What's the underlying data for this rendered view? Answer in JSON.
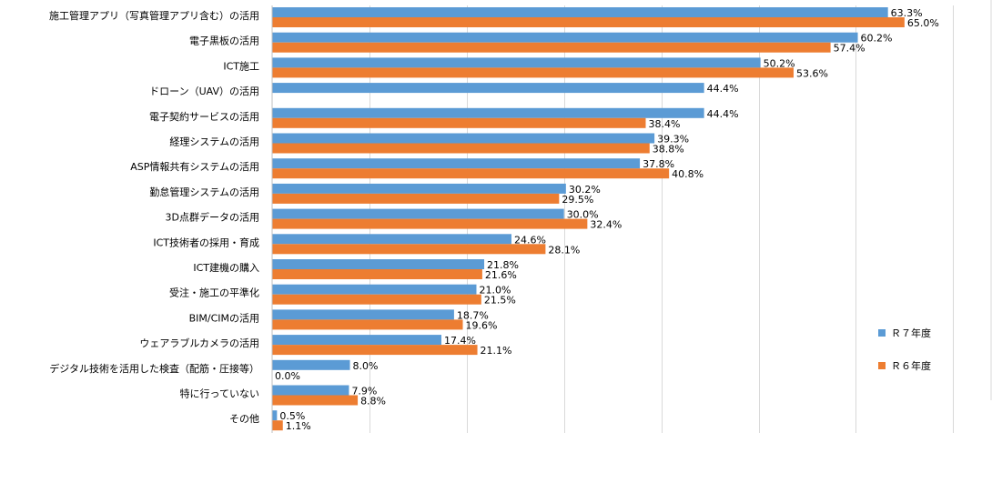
{
  "chart_data": {
    "type": "bar",
    "orientation": "horizontal",
    "categories": [
      "施工管理アプリ（写真管理アプリ含む）の活用",
      "電子黒板の活用",
      "ICT施工",
      "ドローン（UAV）の活用",
      "電子契約サービスの活用",
      "経理システムの活用",
      "ASP情報共有システムの活用",
      "勤怠管理システムの活用",
      "3D点群データの活用",
      "ICT技術者の採用・育成",
      "ICT建機の購入",
      "受注・施工の平準化",
      "BIM/CIMの活用",
      "ウェアラブルカメラの活用",
      "デジタル技術を活用した検査（配筋・圧接等）",
      "特に行っていない",
      "その他"
    ],
    "series": [
      {
        "name": "Ｒ７年度",
        "color": "#5b9bd5",
        "values": [
          63.3,
          60.2,
          50.2,
          44.4,
          44.4,
          39.3,
          37.8,
          30.2,
          30.0,
          24.6,
          21.8,
          21.0,
          18.7,
          17.4,
          8.0,
          7.9,
          0.5
        ],
        "labels": [
          "63.3%",
          "60.2%",
          "50.2%",
          "44.4%",
          "44.4%",
          "39.3%",
          "37.8%",
          "30.2%",
          "30.0%",
          "24.6%",
          "21.8%",
          "21.0%",
          "18.7%",
          "17.4%",
          "8.0%",
          "7.9%",
          "0.5%"
        ]
      },
      {
        "name": "Ｒ６年度",
        "color": "#ed7d31",
        "values": [
          65.0,
          57.4,
          53.6,
          null,
          38.4,
          38.8,
          40.8,
          29.5,
          32.4,
          28.1,
          21.6,
          21.5,
          19.6,
          21.1,
          0.0,
          8.8,
          1.1
        ],
        "labels": [
          "65.0%",
          "57.4%",
          "53.6%",
          "",
          "38.4%",
          "38.8%",
          "40.8%",
          "29.5%",
          "32.4%",
          "28.1%",
          "21.6%",
          "21.5%",
          "19.6%",
          "21.1%",
          "0.0%",
          "8.8%",
          "1.1%"
        ]
      }
    ],
    "xlim": [
      0,
      70
    ],
    "grid": true,
    "legend_position": "right"
  }
}
